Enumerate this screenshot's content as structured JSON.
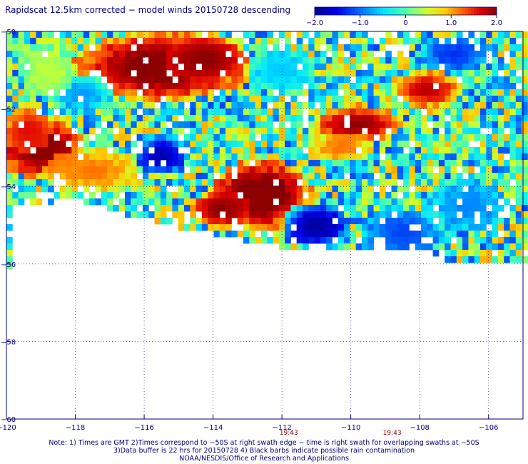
{
  "chart_data": {
    "type": "heatmap",
    "title": "Rapidscat 12.5km corrected − model winds 20150728 descending",
    "xlim": [
      -120,
      -105
    ],
    "ylim": [
      -60,
      -50
    ],
    "x_ticks": [
      {
        "value": -120,
        "label": "−120"
      },
      {
        "value": -118,
        "label": "−118"
      },
      {
        "value": -116,
        "label": "−116"
      },
      {
        "value": -114,
        "label": "−114"
      },
      {
        "value": -112,
        "label": "−112"
      },
      {
        "value": -110,
        "label": "−110"
      },
      {
        "value": -108,
        "label": "−108"
      },
      {
        "value": -106,
        "label": "−106"
      }
    ],
    "y_ticks": [
      {
        "value": -50,
        "label": "−50"
      },
      {
        "value": -52,
        "label": "−52"
      },
      {
        "value": -54,
        "label": "−54"
      },
      {
        "value": -56,
        "label": "−56"
      },
      {
        "value": -58,
        "label": "−58"
      },
      {
        "value": -60,
        "label": "−60"
      }
    ],
    "grid": true,
    "colorbar": {
      "range": [
        -2.0,
        2.0
      ],
      "ticks": [
        {
          "value": -2.0,
          "label": "−2.0"
        },
        {
          "value": -1.0,
          "label": "−1.0"
        },
        {
          "value": 0,
          "label": "0"
        },
        {
          "value": 1.0,
          "label": "1.0"
        },
        {
          "value": 2.0,
          "label": "2.0"
        }
      ],
      "placement": "top-right"
    },
    "time_labels": [
      {
        "x": -111.8,
        "label": "19:43"
      },
      {
        "x": -108.8,
        "label": "19:43"
      }
    ],
    "swath_blobs": [
      {
        "cx": -115.5,
        "cy": -50.9,
        "rx": 2.6,
        "ry": 0.9,
        "v": 2.2
      },
      {
        "cx": -114.2,
        "cy": -50.7,
        "rx": 1.2,
        "ry": 0.6,
        "v": 2.0
      },
      {
        "cx": -117.8,
        "cy": -51.6,
        "rx": 0.9,
        "ry": 0.5,
        "v": -0.8
      },
      {
        "cx": -119.0,
        "cy": -53.0,
        "rx": 1.3,
        "ry": 0.8,
        "v": 2.2
      },
      {
        "cx": -119.4,
        "cy": -52.5,
        "rx": 0.7,
        "ry": 0.6,
        "v": 1.6
      },
      {
        "cx": -117.5,
        "cy": -53.6,
        "rx": 1.4,
        "ry": 0.6,
        "v": 1.2
      },
      {
        "cx": -115.5,
        "cy": -53.2,
        "rx": 0.8,
        "ry": 0.5,
        "v": -1.8
      },
      {
        "cx": -112.6,
        "cy": -54.2,
        "rx": 1.5,
        "ry": 0.9,
        "v": 2.3
      },
      {
        "cx": -113.8,
        "cy": -54.6,
        "rx": 0.9,
        "ry": 0.5,
        "v": 2.0
      },
      {
        "cx": -109.8,
        "cy": -52.4,
        "rx": 1.3,
        "ry": 0.5,
        "v": 2.0
      },
      {
        "cx": -107.8,
        "cy": -51.5,
        "rx": 1.0,
        "ry": 0.5,
        "v": 1.8
      },
      {
        "cx": -110.3,
        "cy": -53.0,
        "rx": 1.0,
        "ry": 0.4,
        "v": 1.2
      },
      {
        "cx": -111.0,
        "cy": -55.0,
        "rx": 1.0,
        "ry": 0.6,
        "v": -1.9
      },
      {
        "cx": -108.5,
        "cy": -55.2,
        "rx": 1.2,
        "ry": 0.6,
        "v": -1.2
      },
      {
        "cx": -106.6,
        "cy": -54.5,
        "rx": 1.2,
        "ry": 0.7,
        "v": -0.9
      },
      {
        "cx": -112.0,
        "cy": -51.0,
        "rx": 1.0,
        "ry": 0.6,
        "v": -0.6
      },
      {
        "cx": -118.8,
        "cy": -51.0,
        "rx": 0.8,
        "ry": 0.7,
        "v": 0.4
      },
      {
        "cx": -107.0,
        "cy": -50.6,
        "rx": 1.0,
        "ry": 0.5,
        "v": -1.3
      }
    ]
  },
  "notes": {
    "line1": "Note: 1) Times are GMT 2)Times correspond to −50S at right swath edge − time is right swath for overlapping swaths at −50S",
    "line2": "3)Data buffer is 22 hrs for 20150728 4) Black barbs indicate possible rain contamination",
    "line3": "NOAA/NESDIS/Office of Research and Applications"
  }
}
